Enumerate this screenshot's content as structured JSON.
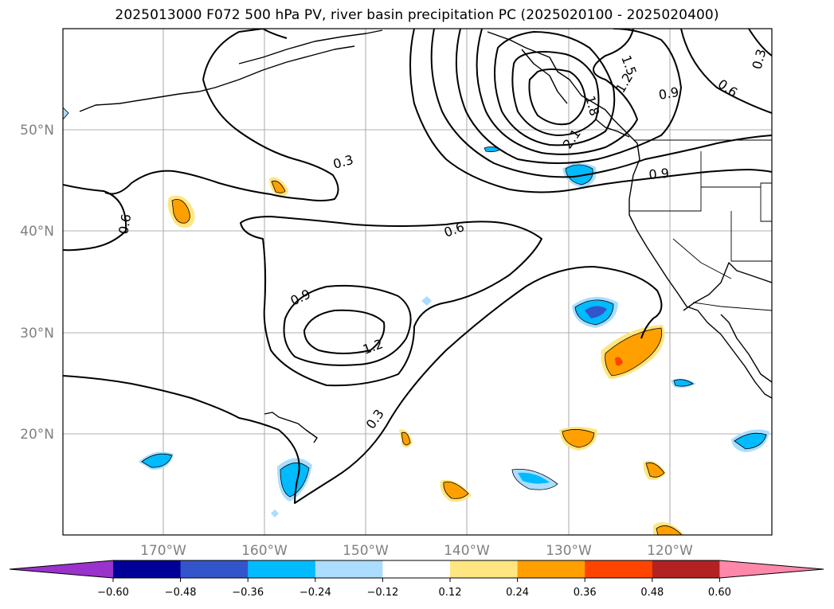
{
  "title": "2025013000 F072 500 hPa PV, river basin precipitation PC (2025020100 - 2025020400)",
  "map": {
    "lon_range": [
      180,
      110
    ],
    "lat_range": [
      10,
      60
    ],
    "lat_labels": [
      "20°N",
      "30°N",
      "40°N",
      "50°N"
    ],
    "lon_labels": [
      "170°W",
      "160°W",
      "150°W",
      "140°W",
      "130°W",
      "120°W"
    ],
    "gridlines": true,
    "contour_labels": [
      "0.3",
      "0.6",
      "0.6",
      "0.9",
      "1.2",
      "0.3",
      "0.6",
      "0.9",
      "1.2",
      "1.5",
      "1.8",
      "2.1",
      "0.9",
      "0.3"
    ]
  },
  "colorbar": {
    "ticks": [
      "−0.60",
      "−0.48",
      "−0.36",
      "−0.24",
      "−0.12",
      "0.12",
      "0.24",
      "0.36",
      "0.48",
      "0.60"
    ],
    "colors": [
      "#9933cc",
      "#000099",
      "#3355cc",
      "#00bbff",
      "#aaddff",
      "#ffffff",
      "#ffe680",
      "#ff9f00",
      "#ff4400",
      "#b22222",
      "#ff88aa"
    ],
    "extend": "both"
  }
}
